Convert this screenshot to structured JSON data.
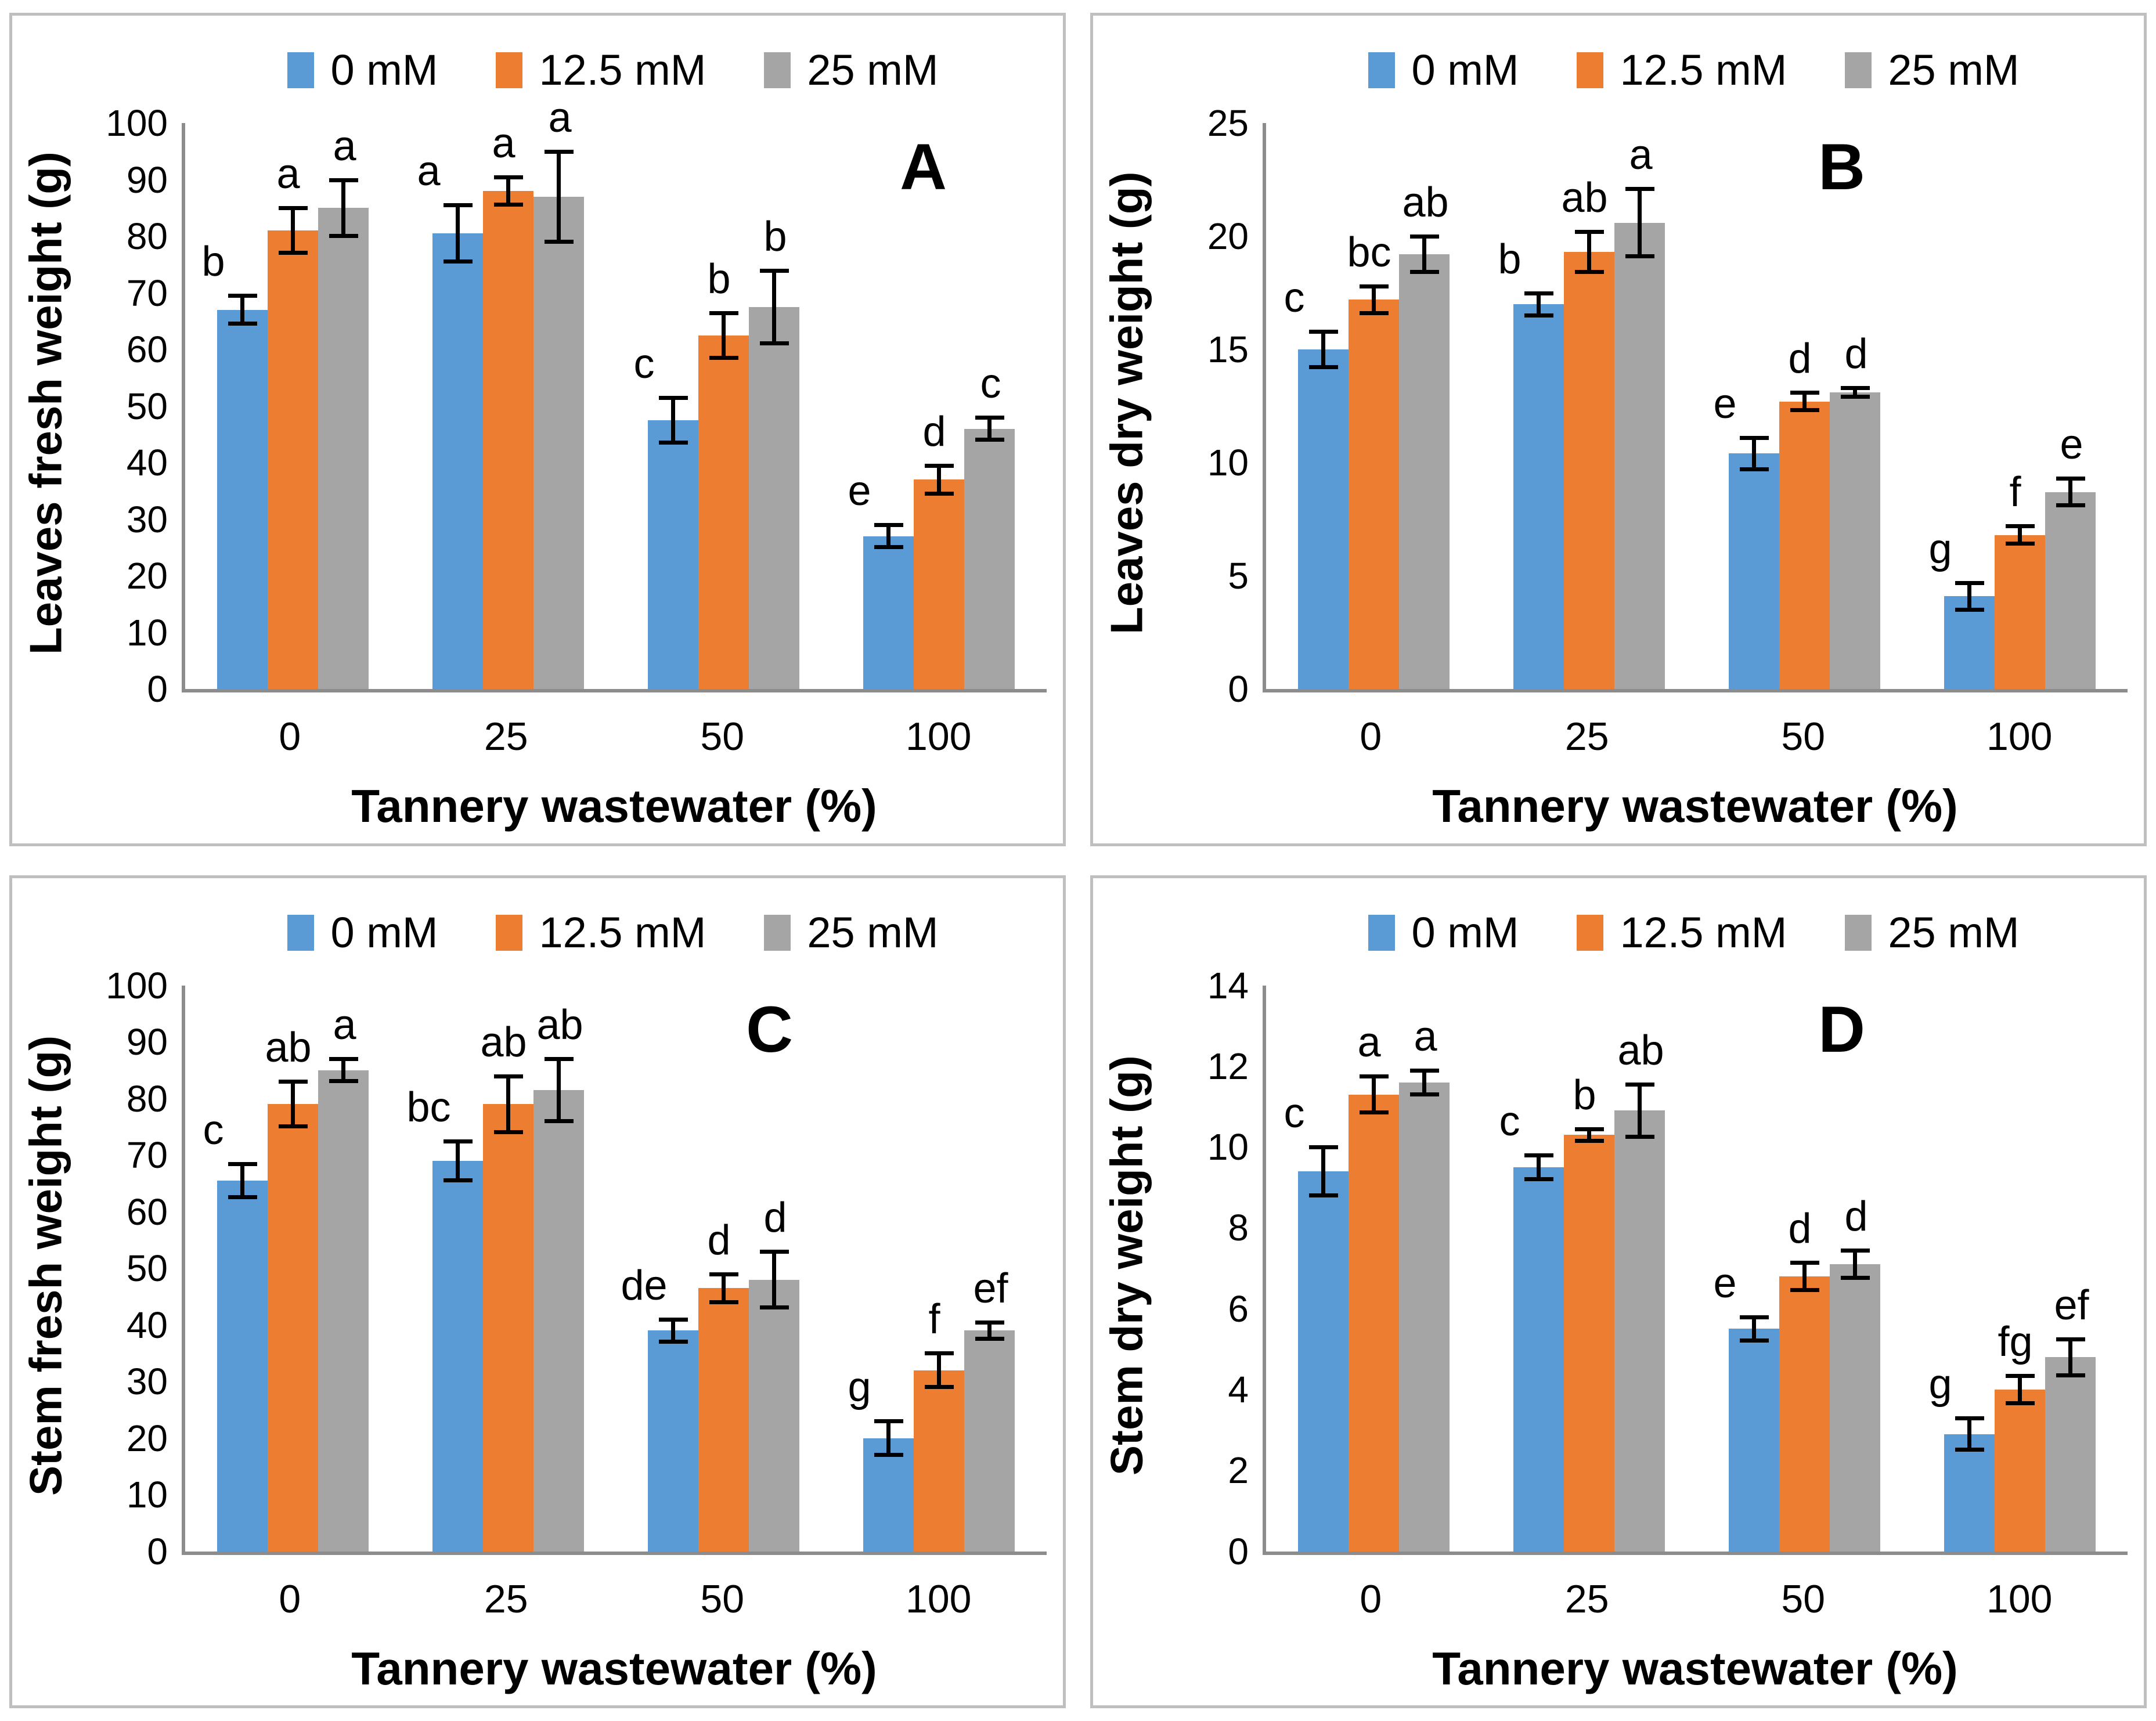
{
  "colors": {
    "series": [
      "#5B9BD5",
      "#ED7D31",
      "#A5A5A5"
    ],
    "axis": "#8C8C8C",
    "panel_border": "#BFBFBF",
    "error_bar": "#000000",
    "text": "#000000"
  },
  "legend": {
    "position": "top",
    "entries": [
      "0 mM",
      "12.5 mM",
      "25 mM"
    ]
  },
  "chart_data": [
    {
      "id": "A",
      "type": "bar",
      "title": "",
      "ylabel": "Leaves fresh weight (g)",
      "xlabel": "Tannery wastewater (%)",
      "ylim": [
        0,
        100
      ],
      "yticks": [
        0,
        10,
        20,
        30,
        40,
        50,
        60,
        70,
        80,
        90,
        100
      ],
      "categories": [
        "0",
        "25",
        "50",
        "100"
      ],
      "grid": false,
      "legend_position": "top",
      "series": [
        {
          "name": "0 mM",
          "color": "#5B9BD5",
          "values": [
            67,
            80.5,
            47.5,
            27
          ],
          "errors": [
            2.5,
            5,
            4,
            2
          ],
          "letters": [
            "b",
            "a",
            "c",
            "e"
          ]
        },
        {
          "name": "12.5 mM",
          "color": "#ED7D31",
          "values": [
            81,
            88,
            62.5,
            37
          ],
          "errors": [
            4,
            2.5,
            4,
            2.5
          ],
          "letters": [
            "a",
            "a",
            "b",
            "d"
          ]
        },
        {
          "name": "25 mM",
          "color": "#A5A5A5",
          "values": [
            85,
            87,
            67.5,
            46
          ],
          "errors": [
            5,
            8,
            6.5,
            2
          ],
          "letters": [
            "a",
            "a",
            "b",
            "c"
          ]
        }
      ]
    },
    {
      "id": "B",
      "type": "bar",
      "title": "",
      "ylabel": "Leaves dry weight (g)",
      "xlabel": "Tannery wastewater (%)",
      "ylim": [
        0,
        25
      ],
      "yticks": [
        0,
        5,
        10,
        15,
        20,
        25
      ],
      "categories": [
        "0",
        "25",
        "50",
        "100"
      ],
      "grid": false,
      "legend_position": "top",
      "series": [
        {
          "name": "0 mM",
          "color": "#5B9BD5",
          "values": [
            15,
            17,
            10.4,
            4.1
          ],
          "errors": [
            0.8,
            0.5,
            0.7,
            0.6
          ],
          "letters": [
            "c",
            "b",
            "e",
            "g"
          ]
        },
        {
          "name": "12.5 mM",
          "color": "#ED7D31",
          "values": [
            17.2,
            19.3,
            12.7,
            6.8
          ],
          "errors": [
            0.6,
            0.9,
            0.4,
            0.4
          ],
          "letters": [
            "bc",
            "ab",
            "d",
            "f"
          ]
        },
        {
          "name": "25 mM",
          "color": "#A5A5A5",
          "values": [
            19.2,
            20.6,
            13.1,
            8.7
          ],
          "errors": [
            0.8,
            1.5,
            0.2,
            0.6
          ],
          "letters": [
            "ab",
            "a",
            "d",
            "e"
          ]
        }
      ]
    },
    {
      "id": "C",
      "type": "bar",
      "title": "",
      "ylabel": "Stem fresh weight (g)",
      "xlabel": "Tannery wastewater (%)",
      "ylim": [
        0,
        100
      ],
      "yticks": [
        0,
        10,
        20,
        30,
        40,
        50,
        60,
        70,
        80,
        90,
        100
      ],
      "categories": [
        "0",
        "25",
        "50",
        "100"
      ],
      "grid": false,
      "legend_position": "top",
      "series": [
        {
          "name": "0 mM",
          "color": "#5B9BD5",
          "values": [
            65.5,
            69,
            39,
            20
          ],
          "errors": [
            3,
            3.5,
            2,
            3
          ],
          "letters": [
            "c",
            "bc",
            "de",
            "g"
          ]
        },
        {
          "name": "12.5 mM",
          "color": "#ED7D31",
          "values": [
            79,
            79,
            46.5,
            32
          ],
          "errors": [
            4,
            5,
            2.5,
            3
          ],
          "letters": [
            "ab",
            "ab",
            "d",
            "f"
          ]
        },
        {
          "name": "25 mM",
          "color": "#A5A5A5",
          "values": [
            85,
            81.5,
            48,
            39
          ],
          "errors": [
            2,
            5.5,
            5,
            1.5
          ],
          "letters": [
            "a",
            "ab",
            "d",
            "ef"
          ]
        }
      ]
    },
    {
      "id": "D",
      "type": "bar",
      "title": "",
      "ylabel": "Stem dry weight (g)",
      "xlabel": "Tannery wastewater (%)",
      "ylim": [
        0,
        14
      ],
      "yticks": [
        0,
        2,
        4,
        6,
        8,
        10,
        12,
        14
      ],
      "categories": [
        "0",
        "25",
        "50",
        "100"
      ],
      "grid": false,
      "legend_position": "top",
      "series": [
        {
          "name": "0 mM",
          "color": "#5B9BD5",
          "values": [
            9.4,
            9.5,
            5.5,
            2.9
          ],
          "errors": [
            0.6,
            0.3,
            0.3,
            0.4
          ],
          "letters": [
            "c",
            "c",
            "e",
            "g"
          ]
        },
        {
          "name": "12.5 mM",
          "color": "#ED7D31",
          "values": [
            11.3,
            10.3,
            6.8,
            4.0
          ],
          "errors": [
            0.45,
            0.15,
            0.35,
            0.35
          ],
          "letters": [
            "a",
            "b",
            "d",
            "fg"
          ]
        },
        {
          "name": "25 mM",
          "color": "#A5A5A5",
          "values": [
            11.6,
            10.9,
            7.1,
            4.8
          ],
          "errors": [
            0.3,
            0.65,
            0.35,
            0.45
          ],
          "letters": [
            "a",
            "ab",
            "d",
            "ef"
          ]
        }
      ]
    }
  ]
}
